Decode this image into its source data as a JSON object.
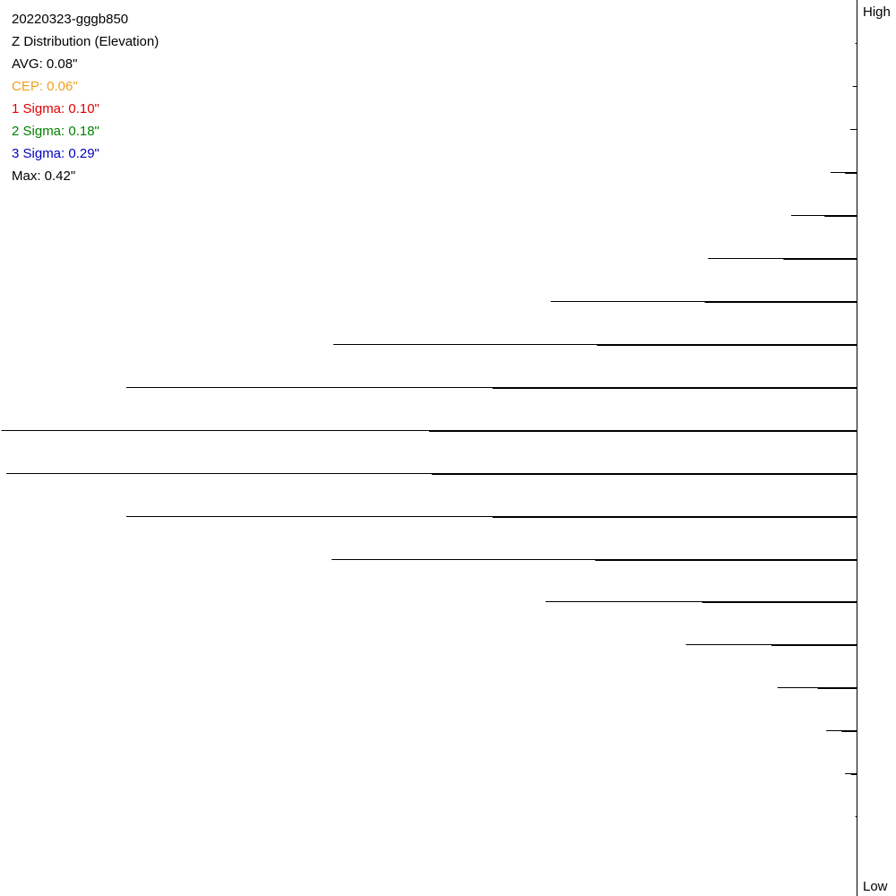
{
  "header": {
    "file_name": "20220323-gggb850",
    "title": "Z Distribution (Elevation)"
  },
  "stats": [
    {
      "key": "avg",
      "text": "AVG: 0.08\"",
      "color": "#000000"
    },
    {
      "key": "cep",
      "text": "CEP: 0.06\"",
      "color": "#f0a020"
    },
    {
      "key": "sigma1",
      "text": "1 Sigma: 0.10\"",
      "color": "#e00000"
    },
    {
      "key": "sigma2",
      "text": "2 Sigma: 0.18\"",
      "color": "#008000"
    },
    {
      "key": "sigma3",
      "text": "3 Sigma: 0.29\"",
      "color": "#0000c0"
    },
    {
      "key": "max",
      "text": "Max: 0.42\"",
      "color": "#000000"
    }
  ],
  "axis": {
    "high_label": "High",
    "low_label": "Low"
  },
  "chart_data": {
    "type": "bar",
    "orientation": "horizontal",
    "direction": "leftward",
    "bins_top_to_bottom": 20,
    "values": [
      0.2,
      0.5,
      0.8,
      3.1,
      7.7,
      17.4,
      35.8,
      61.2,
      85.4,
      100,
      99.4,
      85.4,
      61.4,
      36.4,
      20.0,
      9.3,
      3.6,
      1.4,
      0.2,
      0
    ],
    "secondary_values": [
      0,
      0,
      0,
      1.4,
      3.8,
      8.6,
      17.8,
      30.4,
      42.6,
      50.0,
      49.7,
      42.6,
      30.6,
      18.1,
      10.0,
      4.6,
      1.8,
      0.7,
      0,
      0
    ],
    "xlim": [
      0,
      100
    ]
  }
}
